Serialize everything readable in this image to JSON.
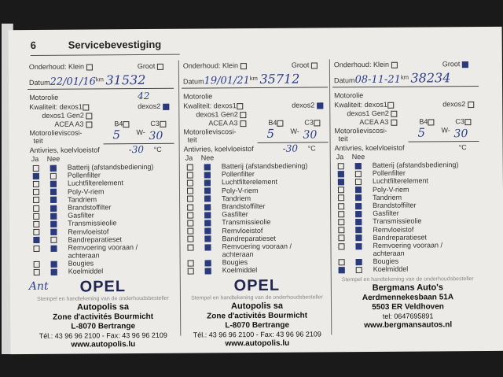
{
  "page_number": "6",
  "title": "Servicebevestiging",
  "labels": {
    "onderhoud": "Onderhoud: Klein",
    "groot": "Groot",
    "datum": "Datum",
    "km": "km",
    "motorolie": "Motorolie",
    "kwaliteit": "Kwaliteit:  dexos1",
    "dexos2": "dexos2",
    "gen2": "dexos1 Gen2",
    "acea": "ACEA A3",
    "b4": "B4",
    "c3": "C3",
    "visc1": "Motorolieviscosi-",
    "visc2": "teit",
    "w": "W-",
    "antivries": "Antivries, koelvloeistof",
    "celsius": "°C",
    "ja": "Ja",
    "nee": "Nee",
    "stamp_caption": "Stempel en handtekening van de onderhoudsbesteller"
  },
  "items": [
    "Batterij (afstandsbediening)",
    "Pollenfilter",
    "Luchtfilterelement",
    "Poly-V-riem",
    "Tandriem",
    "Brandstoffilter",
    "Gasfilter",
    "Transmissieolie",
    "Remvloeistof",
    "Bandreparatieset",
    "Remvoering vooraan / achteraan",
    "Bougies",
    "Koelmiddel"
  ],
  "entries": [
    {
      "date": "22/01/16",
      "km": "31532",
      "oil_note": "42",
      "visc_a": "5",
      "visc_b": "30",
      "antifreeze": "-30",
      "dexos2": true,
      "groot": false,
      "ja": [
        false,
        true,
        false,
        false,
        false,
        false,
        false,
        false,
        false,
        true,
        false,
        false,
        false
      ],
      "nee": [
        true,
        false,
        true,
        true,
        true,
        true,
        true,
        true,
        true,
        false,
        true,
        true,
        true
      ],
      "stamp": {
        "logo": "OPEL",
        "name": "Autopolis sa",
        "addr": "Zone d'activités Bourmicht",
        "city": "L-8070 Bertrange",
        "tel": "Tél.: 43 96 96 2100 - Fax: 43 96 96 2109",
        "web": "www.autopolis.lu"
      },
      "signature": "Ant"
    },
    {
      "date": "19/01/21",
      "km": "35712",
      "oil_note": "",
      "visc_a": "5",
      "visc_b": "30",
      "antifreeze": "-30",
      "dexos2": true,
      "groot": false,
      "ja": [
        false,
        false,
        false,
        false,
        false,
        false,
        false,
        false,
        false,
        false,
        false,
        false,
        false
      ],
      "nee": [
        true,
        true,
        true,
        true,
        true,
        true,
        true,
        true,
        true,
        true,
        true,
        true,
        true
      ],
      "stamp": {
        "logo": "OPEL",
        "name": "Autopolis sa",
        "addr": "Zone d'activités Bourmicht",
        "city": "L-8070 Bertrange",
        "tel": "Tél.: 43 96 96 2100 - Fax: 43 96 96 2109",
        "web": "www.autopolis.lu"
      },
      "signature": ""
    },
    {
      "date": "08-11-21",
      "km": "38234",
      "oil_note": "",
      "visc_a": "5",
      "visc_b": "30",
      "antifreeze": "",
      "dexos2": false,
      "groot": true,
      "ja": [
        false,
        true,
        true,
        false,
        false,
        false,
        false,
        false,
        false,
        false,
        false,
        false,
        true
      ],
      "nee": [
        true,
        false,
        false,
        true,
        true,
        true,
        true,
        true,
        true,
        true,
        true,
        true,
        false
      ],
      "stamp": {
        "logo": "",
        "name": "Bergmans Auto's",
        "addr": "Aerdmennekesbaan 51A",
        "city": "5503 ER Veldhoven",
        "tel": "tel: 0647695891",
        "web": "www.bergmansautos.nl"
      },
      "signature": ""
    }
  ]
}
